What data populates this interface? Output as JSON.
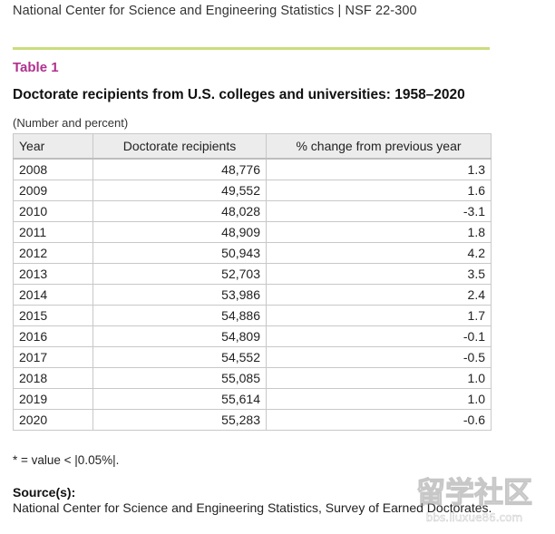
{
  "header": {
    "text": "National Center for Science and Engineering Statistics  |  NSF 22-300"
  },
  "table": {
    "label": "Table 1",
    "title": "Doctorate recipients from U.S. colleges and universities: 1958–2020",
    "unit_note": "(Number and percent)",
    "columns": [
      "Year",
      "Doctorate recipients",
      "% change from previous year"
    ],
    "rows": [
      [
        "2008",
        "48,776",
        "1.3"
      ],
      [
        "2009",
        "49,552",
        "1.6"
      ],
      [
        "2010",
        "48,028",
        "-3.1"
      ],
      [
        "2011",
        "48,909",
        "1.8"
      ],
      [
        "2012",
        "50,943",
        "4.2"
      ],
      [
        "2013",
        "52,703",
        "3.5"
      ],
      [
        "2014",
        "53,986",
        "2.4"
      ],
      [
        "2015",
        "54,886",
        "1.7"
      ],
      [
        "2016",
        "54,809",
        "-0.1"
      ],
      [
        "2017",
        "54,552",
        "-0.5"
      ],
      [
        "2018",
        "55,085",
        "1.0"
      ],
      [
        "2019",
        "55,614",
        "1.0"
      ],
      [
        "2020",
        "55,283",
        "-0.6"
      ]
    ]
  },
  "footnote": "* = value < |0.05%|.",
  "source": {
    "label": "Source(s):",
    "text": "National Center for Science and Engineering Statistics, Survey of Earned Doctorates."
  },
  "watermark": {
    "text": "留学社区",
    "subtext": "bbs.liuxue86.com"
  }
}
